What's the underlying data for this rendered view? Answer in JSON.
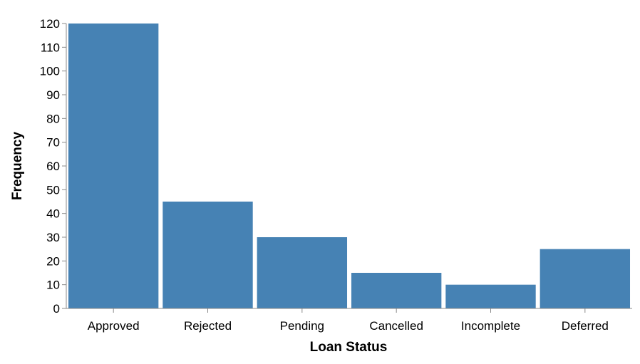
{
  "chart_data": {
    "type": "bar",
    "categories": [
      "Approved",
      "Rejected",
      "Pending",
      "Cancelled",
      "Incomplete",
      "Deferred"
    ],
    "values": [
      120,
      45,
      30,
      15,
      10,
      25
    ],
    "title": "",
    "xlabel": "Loan Status",
    "ylabel": "Frequency",
    "ylim": [
      0,
      120
    ],
    "yticks": [
      0,
      10,
      20,
      30,
      40,
      50,
      60,
      70,
      80,
      90,
      100,
      110,
      120
    ],
    "grid": false,
    "legend": "none",
    "bar_color": "#4682b4"
  }
}
